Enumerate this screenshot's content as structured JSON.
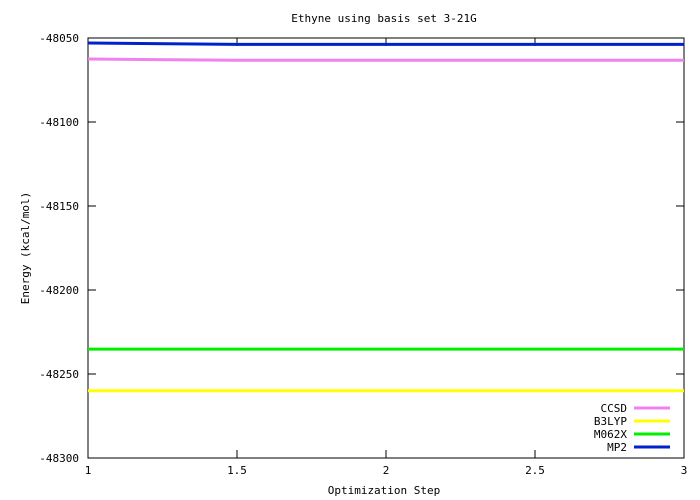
{
  "chart_data": {
    "type": "line",
    "title": "Ethyne using basis set 3-21G",
    "xlabel": "Optimization Step",
    "ylabel": "Energy (kcal/mol)",
    "xlim": [
      1,
      3
    ],
    "ylim": [
      -48300,
      -48050
    ],
    "xticks": [
      1,
      1.5,
      2,
      2.5,
      3
    ],
    "xtick_labels": [
      "1",
      "1.5",
      "2",
      "2.5",
      "3"
    ],
    "yticks": [
      -48050,
      -48100,
      -48150,
      -48200,
      -48250,
      -48300
    ],
    "ytick_labels": [
      "-48050",
      "-48100",
      "-48150",
      "-48200",
      "-48250",
      "-48300"
    ],
    "grid": false,
    "legend_position": "bottom-right",
    "series": [
      {
        "name": "CCSD",
        "color": "#ee82ee",
        "x": [
          1,
          1.5,
          3
        ],
        "y": [
          -48062.5,
          -48063.2,
          -48063.2
        ]
      },
      {
        "name": "B3LYP",
        "color": "#ffff00",
        "x": [
          1,
          1.5,
          3
        ],
        "y": [
          -48260.0,
          -48260.0,
          -48260.0
        ]
      },
      {
        "name": "M062X",
        "color": "#00ee00",
        "x": [
          1,
          1.5,
          3
        ],
        "y": [
          -48235.2,
          -48235.2,
          -48235.2
        ]
      },
      {
        "name": "MP2",
        "color": "#0022cc",
        "x": [
          1,
          1.5,
          3
        ],
        "y": [
          -48053.0,
          -48053.8,
          -48053.8
        ]
      }
    ]
  }
}
